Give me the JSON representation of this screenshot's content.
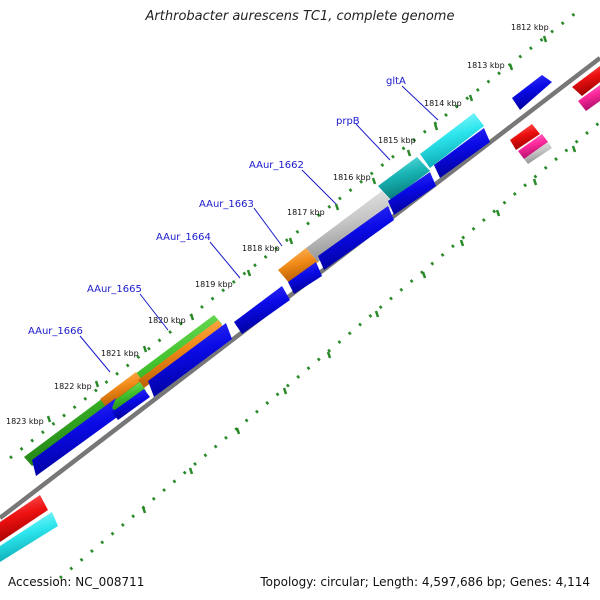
{
  "map": {
    "title": "Arthrobacter aurescens TC1, complete genome",
    "accession": "Accession: NC_008711",
    "summary": "Topology: circular; Length: 4,597,686 bp; Genes: 4,114"
  },
  "kbp_ticks": [
    "1812 kbp",
    "1813 kbp",
    "1814 kbp",
    "1815 kbp",
    "1816 kbp",
    "1817 kbp",
    "1818 kbp",
    "1819 kbp",
    "1820 kbp",
    "1821 kbp",
    "1822 kbp",
    "1823 kbp"
  ],
  "gene_labels": [
    "gltA",
    "prpB",
    "AAur_1662",
    "AAur_1663",
    "AAur_1664",
    "AAur_1665",
    "AAur_1666"
  ],
  "feature_colors": {
    "cds": "#0a0ae6",
    "green": "#3fbf2a",
    "orange": "#f28c1a",
    "gray": "#c8c8c8",
    "teal": "#18b4b4",
    "cyan": "#2ee6ee",
    "red": "#ee1111",
    "pink": "#ff2a9e",
    "backbone": "#777777",
    "dotted_ring": "#2a8a2a",
    "callout_line": "#1a1acc"
  }
}
